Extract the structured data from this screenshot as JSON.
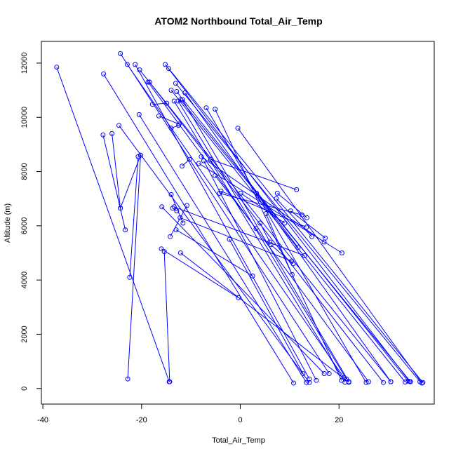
{
  "chart_data": {
    "type": "line",
    "title": "ATOM2 Northbound Total_Air_Temp",
    "xlabel": "Total_Air_Temp",
    "ylabel": "Altitude (m)",
    "xlim": [
      -40.3,
      39.3
    ],
    "ylim": [
      -575,
      12800
    ],
    "xticks": [
      -40,
      -20,
      0,
      20
    ],
    "yticks": [
      0,
      2000,
      4000,
      6000,
      8000,
      10000,
      12000
    ],
    "grid": false,
    "legend": "none",
    "series_color": "#0000ff",
    "marker": "open-circle",
    "series": [
      {
        "x": [
          -37.2,
          -14.4
        ],
        "y": [
          11850,
          250
        ]
      },
      {
        "x": [
          -27.7,
          10.8
        ],
        "y": [
          11600,
          200
        ]
      },
      {
        "x": [
          -24.3,
          18.0
        ],
        "y": [
          12350,
          550
        ]
      },
      {
        "x": [
          -22.9,
          21.0
        ],
        "y": [
          11950,
          400
        ]
      },
      {
        "x": [
          -21.3,
          14.0
        ],
        "y": [
          11950,
          350
        ]
      },
      {
        "x": [
          -20.4,
          30.5
        ],
        "y": [
          11750,
          250
        ]
      },
      {
        "x": [
          -18.7,
          26.0
        ],
        "y": [
          11300,
          250
        ]
      },
      {
        "x": [
          -18.4,
          29.0
        ],
        "y": [
          11300,
          220
        ]
      },
      {
        "x": [
          -15.2,
          34.3
        ],
        "y": [
          11950,
          260
        ]
      },
      {
        "x": [
          -14.5,
          37.0
        ],
        "y": [
          11800,
          220
        ]
      },
      {
        "x": [
          -13.1,
          36.4
        ],
        "y": [
          11250,
          250
        ]
      },
      {
        "x": [
          -12.9,
          34.0
        ],
        "y": [
          10950,
          270
        ]
      },
      {
        "x": [
          -11.2,
          30.5
        ],
        "y": [
          10900,
          250
        ]
      },
      {
        "x": [
          -14.0,
          33.4
        ],
        "y": [
          11000,
          240
        ]
      },
      {
        "x": [
          -12.6,
          21.5
        ],
        "y": [
          10600,
          350
        ]
      },
      {
        "x": [
          -11.7,
          22.0
        ],
        "y": [
          10650,
          250
        ]
      },
      {
        "x": [
          -12.1,
          34.5
        ],
        "y": [
          10650,
          250
        ]
      },
      {
        "x": [
          -17.8,
          -14.9
        ],
        "y": [
          10480,
          10520
        ]
      },
      {
        "x": [
          -13.4,
          21.2
        ],
        "y": [
          10600,
          230
        ]
      },
      {
        "x": [
          -6.9,
          25.5
        ],
        "y": [
          10350,
          220
        ]
      },
      {
        "x": [
          -5.1,
          20.5
        ],
        "y": [
          10300,
          300
        ]
      },
      {
        "x": [
          -0.5,
          36.8
        ],
        "y": [
          9600,
          200
        ]
      },
      {
        "x": [
          -20.5,
          13.4
        ],
        "y": [
          10100,
          220
        ]
      },
      {
        "x": [
          -16.5,
          -12.4
        ],
        "y": [
          10050,
          9750
        ]
      },
      {
        "x": [
          -14.0,
          -12.5
        ],
        "y": [
          9600,
          9700
        ]
      },
      {
        "x": [
          -24.6,
          14.0
        ],
        "y": [
          9700,
          220
        ]
      },
      {
        "x": [
          -27.8,
          -23.3
        ],
        "y": [
          9350,
          5850
        ]
      },
      {
        "x": [
          -26.0,
          -24.3
        ],
        "y": [
          9400,
          6650
        ]
      },
      {
        "x": [
          -24.3,
          -20.2
        ],
        "y": [
          6650,
          8600
        ]
      },
      {
        "x": [
          -20.7,
          -22.4
        ],
        "y": [
          8550,
          4100
        ]
      },
      {
        "x": [
          -20.2,
          -22.8
        ],
        "y": [
          8600,
          350
        ]
      },
      {
        "x": [
          -11.8,
          -10.3
        ],
        "y": [
          8200,
          8450
        ]
      },
      {
        "x": [
          -7.9,
          17.0
        ],
        "y": [
          8550,
          5400
        ]
      },
      {
        "x": [
          -7.4,
          15.4
        ],
        "y": [
          8400,
          300
        ]
      },
      {
        "x": [
          -6.0,
          11.4
        ],
        "y": [
          8450,
          7330
        ]
      },
      {
        "x": [
          -8.4,
          20.6
        ],
        "y": [
          8300,
          5000
        ]
      },
      {
        "x": [
          -5.1,
          3.2
        ],
        "y": [
          7850,
          5900
        ]
      },
      {
        "x": [
          -4.2,
          12.5
        ],
        "y": [
          7200,
          6400
        ]
      },
      {
        "x": [
          -3.9,
          13.4
        ],
        "y": [
          7280,
          5950
        ]
      },
      {
        "x": [
          0.1,
          9.0
        ],
        "y": [
          7200,
          6100
        ]
      },
      {
        "x": [
          3.3,
          11.7
        ],
        "y": [
          7200,
          5200
        ]
      },
      {
        "x": [
          7.3,
          14.5
        ],
        "y": [
          7000,
          5600
        ]
      },
      {
        "x": [
          7.5,
          13.5
        ],
        "y": [
          7200,
          6300
        ]
      },
      {
        "x": [
          10.2,
          17.2
        ],
        "y": [
          6550,
          5550
        ]
      },
      {
        "x": [
          4.0,
          6.0
        ],
        "y": [
          6100,
          5400
        ]
      },
      {
        "x": [
          5.2,
          10.5
        ],
        "y": [
          6450,
          4200
        ]
      },
      {
        "x": [
          6.2,
          10.7
        ],
        "y": [
          5300,
          4600
        ]
      },
      {
        "x": [
          -14.0,
          -11.6
        ],
        "y": [
          7150,
          6100
        ]
      },
      {
        "x": [
          -13.7,
          -12.9
        ],
        "y": [
          6650,
          6550
        ]
      },
      {
        "x": [
          -13.4,
          13.0
        ],
        "y": [
          6700,
          4900
        ]
      },
      {
        "x": [
          -10.8,
          -14.2
        ],
        "y": [
          6750,
          5600
        ]
      },
      {
        "x": [
          -12.2,
          10.4
        ],
        "y": [
          6300,
          4700
        ]
      },
      {
        "x": [
          -13.0,
          2.5
        ],
        "y": [
          5850,
          4150
        ]
      },
      {
        "x": [
          -15.9,
          17.0
        ],
        "y": [
          6700,
          550
        ]
      },
      {
        "x": [
          -16.0,
          -0.4
        ],
        "y": [
          5150,
          3350
        ]
      },
      {
        "x": [
          -15.4,
          -14.3
        ],
        "y": [
          5050,
          250
        ]
      },
      {
        "x": [
          -12.1,
          22.0
        ],
        "y": [
          5000,
          230
        ]
      },
      {
        "x": [
          -2.2,
          12.7
        ],
        "y": [
          5500,
          550
        ]
      }
    ]
  }
}
